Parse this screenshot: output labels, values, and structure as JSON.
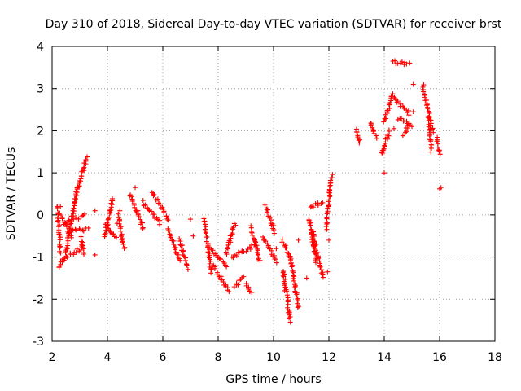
{
  "chart_data": {
    "type": "scatter",
    "title": "Day 310 of 2018, Sidereal Day-to-day VTEC variation (SDTVAR) for receiver brst",
    "xlabel": "GPS time / hours",
    "ylabel": "SDTVAR / TECUs",
    "xlim": [
      2,
      18
    ],
    "ylim": [
      -3,
      4
    ],
    "xticks": [
      "2",
      "4",
      "6",
      "8",
      "10",
      "12",
      "14",
      "16",
      "18"
    ],
    "yticks": [
      "-3",
      "-2",
      "-1",
      "0",
      "1",
      "2",
      "3",
      "4"
    ],
    "grid": true,
    "marker": "plus",
    "series": [
      {
        "name": "SDTVAR",
        "color": "#ff0000",
        "segments": [
          {
            "x0": 2.25,
            "y0": -1.25,
            "x1": 2.45,
            "y1": -1.0
          },
          {
            "x0": 2.45,
            "y0": -1.0,
            "x1": 3.1,
            "y1": -0.8
          },
          {
            "x0": 2.2,
            "y0": 0.2,
            "x1": 2.3,
            "y1": -0.9
          },
          {
            "x0": 2.3,
            "y0": 0.0,
            "x1": 2.7,
            "y1": -0.5
          },
          {
            "x0": 2.5,
            "y0": -0.9,
            "x1": 2.9,
            "y1": 0.6
          },
          {
            "x0": 2.8,
            "y0": 0.3,
            "x1": 3.25,
            "y1": 1.38
          },
          {
            "x0": 2.5,
            "y0": -0.2,
            "x1": 3.2,
            "y1": 0.0
          },
          {
            "x0": 2.7,
            "y0": -0.35,
            "x1": 3.3,
            "y1": -0.35
          },
          {
            "x0": 3.05,
            "y0": -0.55,
            "x1": 3.15,
            "y1": -0.9
          },
          {
            "x0": 3.9,
            "y0": -0.5,
            "x1": 4.2,
            "y1": 0.4
          },
          {
            "x0": 3.95,
            "y0": -0.2,
            "x1": 4.3,
            "y1": -0.55
          },
          {
            "x0": 4.4,
            "y0": 0.0,
            "x1": 4.6,
            "y1": -0.8
          },
          {
            "x0": 4.8,
            "y0": 0.5,
            "x1": 5.3,
            "y1": -0.3
          },
          {
            "x0": 5.3,
            "y0": 0.3,
            "x1": 5.9,
            "y1": -0.2
          },
          {
            "x0": 5.6,
            "y0": 0.55,
            "x1": 6.2,
            "y1": -0.1
          },
          {
            "x0": 6.2,
            "y0": -0.3,
            "x1": 6.6,
            "y1": -1.1
          },
          {
            "x0": 6.6,
            "y0": -0.6,
            "x1": 6.9,
            "y1": -1.25
          },
          {
            "x0": 7.5,
            "y0": -0.1,
            "x1": 7.75,
            "y1": -1.35
          },
          {
            "x0": 7.7,
            "y0": -0.8,
            "x1": 8.3,
            "y1": -1.2
          },
          {
            "x0": 7.8,
            "y0": -1.2,
            "x1": 8.4,
            "y1": -1.8
          },
          {
            "x0": 8.3,
            "y0": -0.9,
            "x1": 8.6,
            "y1": -0.2
          },
          {
            "x0": 8.5,
            "y0": -1.0,
            "x1": 9.4,
            "y1": -0.7
          },
          {
            "x0": 8.6,
            "y0": -1.7,
            "x1": 8.9,
            "y1": -1.5
          },
          {
            "x0": 9.0,
            "y0": -1.65,
            "x1": 9.2,
            "y1": -1.85
          },
          {
            "x0": 9.2,
            "y0": -0.3,
            "x1": 9.5,
            "y1": -1.1
          },
          {
            "x0": 9.7,
            "y0": 0.2,
            "x1": 10.05,
            "y1": -0.4
          },
          {
            "x0": 9.6,
            "y0": -0.5,
            "x1": 10.1,
            "y1": -1.1
          },
          {
            "x0": 10.3,
            "y0": -0.6,
            "x1": 10.6,
            "y1": -1.0
          },
          {
            "x0": 10.35,
            "y0": -1.3,
            "x1": 10.6,
            "y1": -2.5
          },
          {
            "x0": 10.6,
            "y0": -1.0,
            "x1": 10.9,
            "y1": -2.2
          },
          {
            "x0": 11.3,
            "y0": -0.1,
            "x1": 11.55,
            "y1": -1.1
          },
          {
            "x0": 11.4,
            "y0": -0.4,
            "x1": 11.8,
            "y1": -1.5
          },
          {
            "x0": 11.35,
            "y0": 0.2,
            "x1": 11.75,
            "y1": 0.3
          },
          {
            "x0": 11.9,
            "y0": -0.3,
            "x1": 12.1,
            "y1": 0.95
          },
          {
            "x0": 13.0,
            "y0": 2.05,
            "x1": 13.1,
            "y1": 1.7
          },
          {
            "x0": 13.5,
            "y0": 2.2,
            "x1": 13.7,
            "y1": 1.85
          },
          {
            "x0": 13.9,
            "y0": 1.45,
            "x1": 14.2,
            "y1": 2.0
          },
          {
            "x0": 14.0,
            "y0": 2.2,
            "x1": 14.3,
            "y1": 2.9
          },
          {
            "x0": 14.35,
            "y0": 2.8,
            "x1": 14.9,
            "y1": 2.4
          },
          {
            "x0": 14.5,
            "y0": 2.3,
            "x1": 14.9,
            "y1": 2.15
          },
          {
            "x0": 14.3,
            "y0": 3.65,
            "x1": 14.9,
            "y1": 3.58
          },
          {
            "x0": 14.7,
            "y0": 1.9,
            "x1": 14.9,
            "y1": 2.15
          },
          {
            "x0": 15.4,
            "y0": 3.05,
            "x1": 15.75,
            "y1": 2.0
          },
          {
            "x0": 15.7,
            "y0": 1.5,
            "x1": 15.6,
            "y1": 2.4
          },
          {
            "x0": 15.9,
            "y0": 1.8,
            "x1": 16.0,
            "y1": 1.45
          }
        ],
        "isolated": [
          [
            2.3,
            0.2
          ],
          [
            3.55,
            0.1
          ],
          [
            3.55,
            -0.95
          ],
          [
            4.35,
            -0.2
          ],
          [
            4.45,
            0.1
          ],
          [
            5.0,
            0.65
          ],
          [
            5.1,
            0.1
          ],
          [
            7.0,
            -0.1
          ],
          [
            7.1,
            -0.5
          ],
          [
            8.0,
            -1.0
          ],
          [
            10.1,
            -0.8
          ],
          [
            10.4,
            -1.8
          ],
          [
            10.9,
            -0.6
          ],
          [
            11.2,
            -1.5
          ],
          [
            11.95,
            -1.35
          ],
          [
            12.0,
            -0.6
          ],
          [
            14.0,
            1.0
          ],
          [
            14.35,
            2.05
          ],
          [
            15.0,
            2.1
          ],
          [
            15.05,
            3.1
          ],
          [
            15.05,
            2.45
          ],
          [
            16.0,
            0.62
          ],
          [
            16.05,
            0.65
          ]
        ]
      }
    ]
  }
}
